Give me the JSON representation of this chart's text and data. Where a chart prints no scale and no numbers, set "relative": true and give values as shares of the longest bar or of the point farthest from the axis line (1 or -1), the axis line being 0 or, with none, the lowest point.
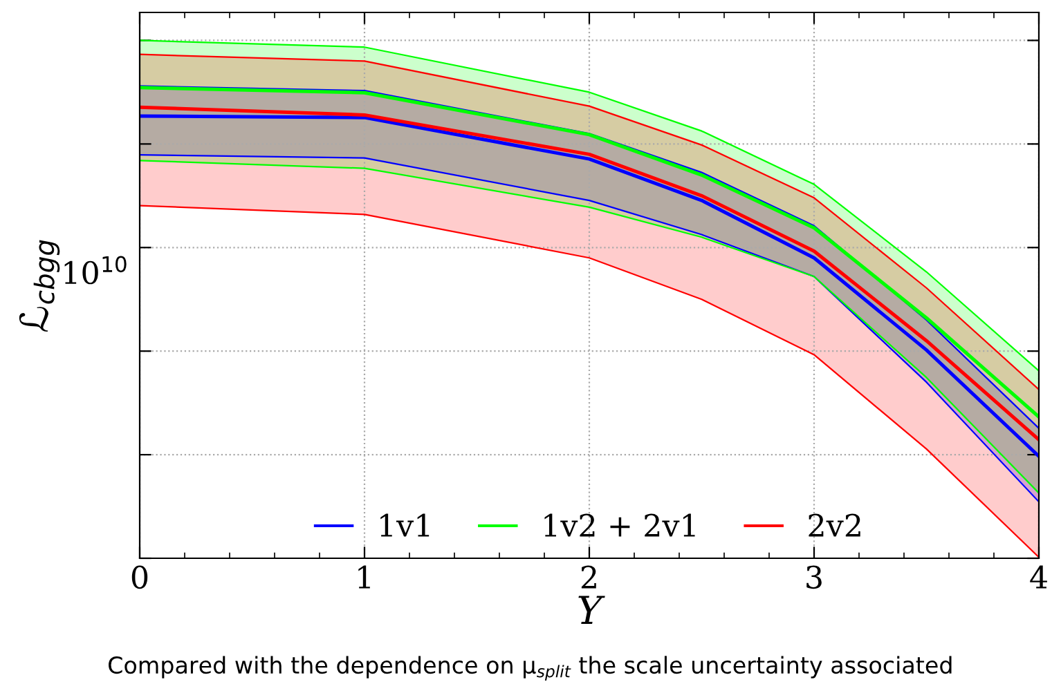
{
  "chart_data": {
    "type": "line",
    "x": [
      0,
      1,
      2,
      2.5,
      3,
      3.5,
      4
    ],
    "relative": true,
    "series": [
      {
        "name": "1v1",
        "color": "#0000ff",
        "values": [
          0.854,
          0.851,
          0.771,
          0.691,
          0.58,
          0.402,
          0.197
        ],
        "lower": [
          0.779,
          0.773,
          0.691,
          0.625,
          0.544,
          0.34,
          0.109
        ],
        "upper": [
          0.912,
          0.903,
          0.82,
          0.745,
          0.642,
          0.46,
          0.251
        ]
      },
      {
        "color": "#0000ff",
        "values": [
          0.779,
          0.773,
          0.691,
          0.625,
          0.544,
          0.34,
          0.109
        ]
      },
      {
        "color": "#0000ff",
        "values": [
          0.912,
          0.903,
          0.82,
          0.745,
          0.642,
          0.46,
          0.251
        ]
      },
      {
        "name": "1v2 + 2v1",
        "color": "#00ff00",
        "values": [
          0.909,
          0.899,
          0.818,
          0.74,
          0.638,
          0.464,
          0.273
        ],
        "lower": [
          0.768,
          0.753,
          0.678,
          0.62,
          0.544,
          0.349,
          0.126
        ],
        "upper": [
          1,
          0.987,
          0.9,
          0.825,
          0.722,
          0.553,
          0.362
        ]
      },
      {
        "color": "#00ff00",
        "values": [
          0.768,
          0.753,
          0.678,
          0.62,
          0.544,
          0.349,
          0.126
        ]
      },
      {
        "color": "#00ff00",
        "values": [
          1,
          0.987,
          0.9,
          0.825,
          0.722,
          0.553,
          0.362
        ]
      },
      {
        "name": "2v2",
        "color": "#ff0000",
        "values": [
          0.871,
          0.856,
          0.78,
          0.7,
          0.593,
          0.42,
          0.229
        ],
        "lower": [
          0.681,
          0.664,
          0.58,
          0.5,
          0.393,
          0.211,
          0.002
        ],
        "upper": [
          0.973,
          0.96,
          0.873,
          0.798,
          0.696,
          0.522,
          0.326
        ]
      },
      {
        "color": "#ff0000",
        "values": [
          0.681,
          0.664,
          0.58,
          0.5,
          0.393,
          0.211,
          0.002
        ]
      },
      {
        "color": "#ff0000",
        "values": [
          0.973,
          0.96,
          0.873,
          0.798,
          0.696,
          0.522,
          0.326
        ]
      }
    ],
    "xlabel": "Y",
    "ylabel": "ℒ$_{cbgg}$",
    "xlim": [
      0,
      4
    ],
    "xticks": [
      0,
      1,
      2,
      3,
      4
    ],
    "grid": true,
    "legend": "bottom",
    "marker": "none",
    "line_style": "solid",
    "annotations": [
      "10$^{10}$",
      "Compared with the dependence on μ$_{split}$ the scale uncertainty associated"
    ]
  }
}
